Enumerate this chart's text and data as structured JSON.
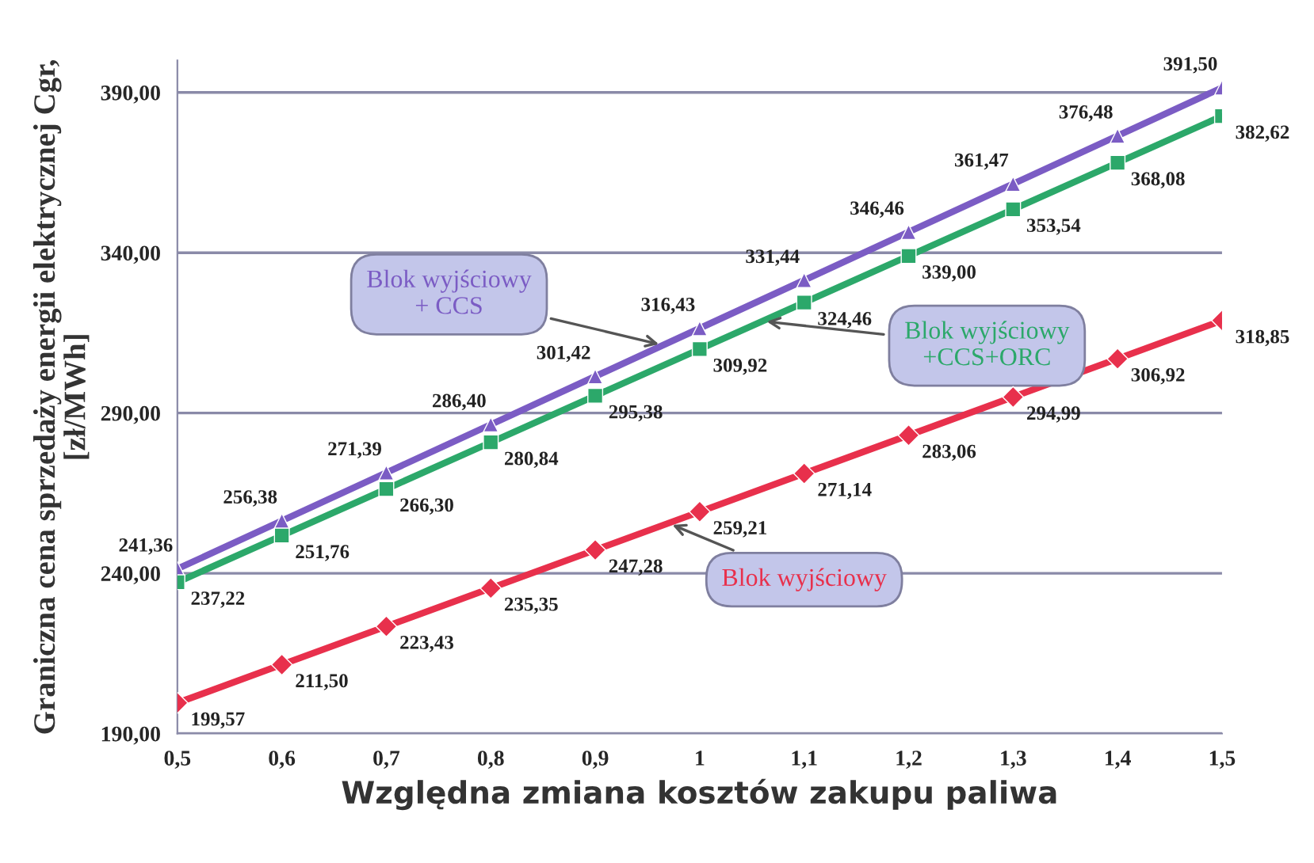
{
  "chart_data": {
    "type": "line",
    "xlabel": "Względna zmiana kosztów zakupu paliwa",
    "ylabel": "Graniczna cena sprzedaży energii elektrycznej Cgr,\n[zł/MWh]",
    "x": [
      0.5,
      0.6,
      0.7,
      0.8,
      0.9,
      1.0,
      1.1,
      1.2,
      1.3,
      1.4,
      1.5
    ],
    "series": [
      {
        "name": "Blok wyjściowy\n+ CCS",
        "color": "#7b5cc4",
        "marker": "triangle",
        "values": [
          241.36,
          256.38,
          271.39,
          286.4,
          301.42,
          316.43,
          331.44,
          346.46,
          361.47,
          376.48,
          391.5
        ],
        "value_labels": [
          "241,36",
          "256,38",
          "271,39",
          "286,40",
          "301,42",
          "316,43",
          "331,44",
          "346,46",
          "361,47",
          "376,48",
          "391,50"
        ]
      },
      {
        "name": "Blok wyjściowy\n+CCS+ORC",
        "color": "#2ca86a",
        "marker": "square",
        "values": [
          237.22,
          251.76,
          266.3,
          280.84,
          295.38,
          309.92,
          324.46,
          339.0,
          353.54,
          368.08,
          382.62
        ],
        "value_labels": [
          "237,22",
          "251,76",
          "266,30",
          "280,84",
          "295,38",
          "309,92",
          "324,46",
          "339,00",
          "353,54",
          "368,08",
          "382,62"
        ]
      },
      {
        "name": "Blok wyjściowy",
        "color": "#e8304c",
        "marker": "diamond",
        "values": [
          199.57,
          211.5,
          223.43,
          235.35,
          247.28,
          259.21,
          271.14,
          283.06,
          294.99,
          306.92,
          318.85
        ],
        "value_labels": [
          "199,57",
          "211,50",
          "223,43",
          "235,35",
          "247,28",
          "259,21",
          "271,14",
          "283,06",
          "294,99",
          "306,92",
          "318,85"
        ]
      }
    ],
    "xlim": [
      0.5,
      1.5
    ],
    "xticks": [
      {
        "value": 0.5,
        "label": "0,5"
      },
      {
        "value": 0.6,
        "label": "0,6"
      },
      {
        "value": 0.7,
        "label": "0,7"
      },
      {
        "value": 0.8,
        "label": "0,8"
      },
      {
        "value": 0.9,
        "label": "0,9"
      },
      {
        "value": 1.0,
        "label": "1"
      },
      {
        "value": 1.1,
        "label": "1,1"
      },
      {
        "value": 1.2,
        "label": "1,2"
      },
      {
        "value": 1.3,
        "label": "1,3"
      },
      {
        "value": 1.4,
        "label": "1,4"
      },
      {
        "value": 1.5,
        "label": "1,5"
      }
    ],
    "ylim": [
      190,
      400
    ],
    "yticks": [
      {
        "value": 190,
        "label": "190,00"
      },
      {
        "value": 240,
        "label": "240,00"
      },
      {
        "value": 290,
        "label": "290,00"
      },
      {
        "value": 340,
        "label": "340,00"
      },
      {
        "value": 390,
        "label": "390,00"
      }
    ],
    "grid": "y",
    "line_style": "solid",
    "legend": false
  }
}
